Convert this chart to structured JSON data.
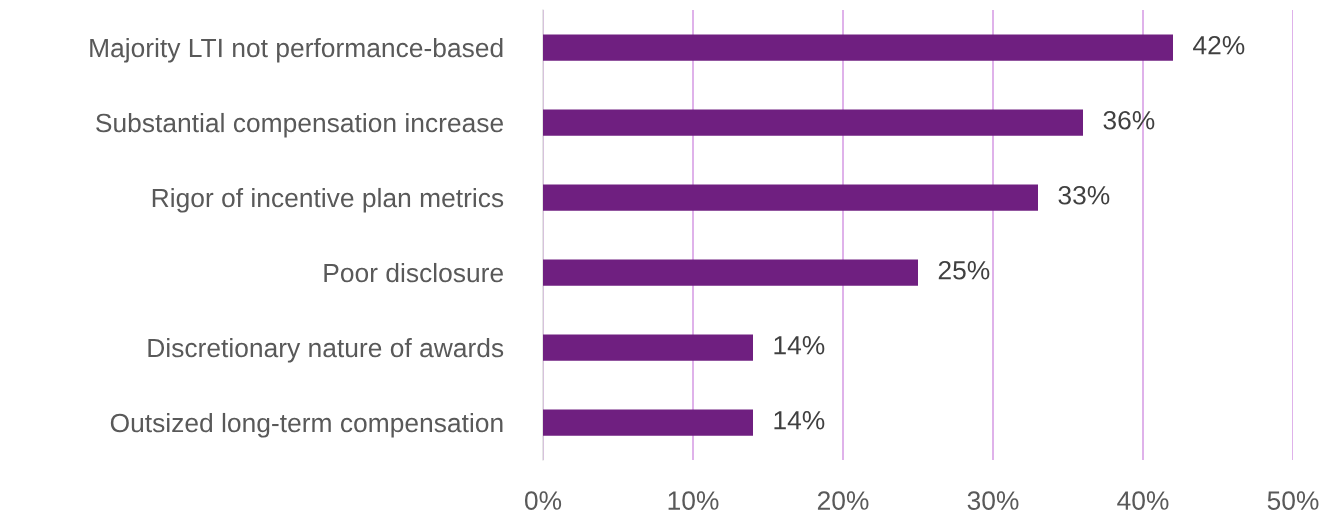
{
  "chart_data": {
    "type": "bar",
    "orientation": "horizontal",
    "categories": [
      "Majority LTI not performance-based",
      "Substantial compensation increase",
      "Rigor of incentive plan metrics",
      "Poor disclosure",
      "Discretionary nature of awards",
      "Outsized long-term compensation"
    ],
    "values": [
      42,
      36,
      33,
      25,
      14,
      14
    ],
    "color": "#6f1f80",
    "value_labels": [
      "42%",
      "36%",
      "33%",
      "25%",
      "14%",
      "14%"
    ],
    "xlim": [
      0,
      50
    ],
    "xticks": [
      {
        "value": 0,
        "label": "0%"
      },
      {
        "value": 10,
        "label": "10%"
      },
      {
        "value": 20,
        "label": "20%"
      },
      {
        "value": 30,
        "label": "30%"
      },
      {
        "value": 40,
        "label": "40%"
      },
      {
        "value": 50,
        "label": "50%"
      }
    ],
    "grid": "x",
    "legend": false
  }
}
